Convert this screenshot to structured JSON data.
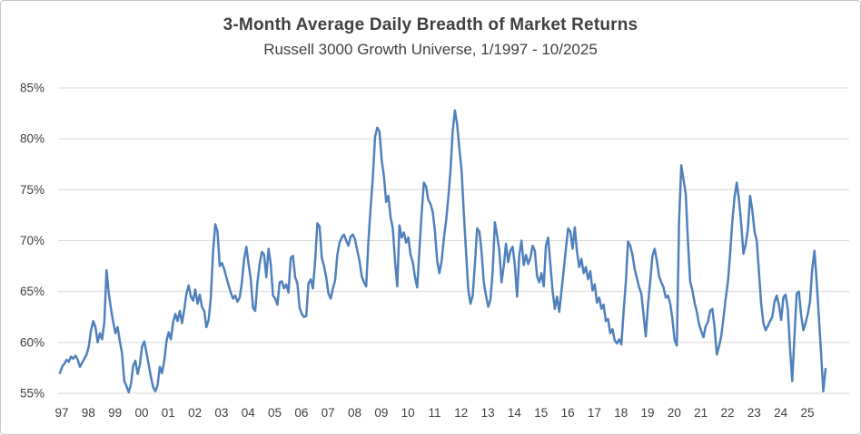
{
  "chart": {
    "title": "3-Month Average Daily Breadth of Market Returns",
    "subtitle": "Russell 3000 Growth Universe, 1/1997 - 10/2025"
  },
  "colors": {
    "line": "#4F81BD",
    "grid": "#D9D9D9",
    "text": "#3F3F3F",
    "title_text": "#414141",
    "border": "#C6C6C6",
    "background": "#FFFFFF"
  },
  "chart_data": {
    "type": "line",
    "title": "3-Month Average Daily Breadth of Market Returns",
    "subtitle": "Russell 3000 Growth Universe, 1/1997 - 10/2025",
    "xlabel": "",
    "ylabel": "",
    "grid": "horizontal",
    "legend": "none",
    "x_start_year": 1997,
    "x_points_per_year": 12,
    "x_end_label": "10/2025",
    "x_tick_labels": [
      "97",
      "98",
      "99",
      "00",
      "01",
      "02",
      "03",
      "04",
      "05",
      "06",
      "07",
      "08",
      "09",
      "10",
      "11",
      "12",
      "13",
      "14",
      "15",
      "16",
      "17",
      "18",
      "19",
      "20",
      "21",
      "22",
      "23",
      "24",
      "25"
    ],
    "y_ticks": [
      55,
      60,
      65,
      70,
      75,
      80,
      85
    ],
    "y_tick_suffix": "%",
    "ylim": [
      55,
      85
    ],
    "series": [
      {
        "name": "3-month average daily breadth of market returns",
        "values": [
          57.0,
          57.6,
          57.9,
          58.3,
          58.1,
          58.6,
          58.4,
          58.7,
          58.3,
          57.6,
          58.0,
          58.4,
          58.8,
          59.6,
          61.2,
          62.1,
          61.5,
          60.0,
          60.9,
          60.3,
          62.0,
          67.1,
          64.8,
          63.3,
          62.0,
          60.9,
          61.5,
          60.1,
          58.9,
          56.2,
          55.7,
          55.1,
          55.9,
          57.7,
          58.2,
          56.9,
          57.8,
          59.6,
          60.1,
          59.0,
          57.8,
          56.6,
          55.6,
          55.2,
          55.8,
          57.6,
          57.0,
          58.2,
          60.1,
          61.0,
          60.3,
          62.0,
          62.8,
          62.1,
          63.1,
          61.9,
          63.2,
          64.8,
          65.6,
          64.5,
          64.1,
          65.2,
          63.8,
          64.7,
          63.5,
          63.1,
          61.5,
          62.2,
          64.4,
          68.9,
          71.6,
          70.9,
          67.5,
          67.8,
          67.2,
          66.4,
          65.6,
          64.9,
          64.3,
          64.6,
          64.0,
          64.4,
          65.9,
          68.2,
          69.4,
          67.7,
          66.2,
          63.4,
          63.1,
          65.9,
          67.7,
          68.9,
          68.6,
          66.4,
          69.2,
          67.7,
          64.6,
          64.3,
          63.7,
          65.9,
          66.0,
          65.3,
          65.7,
          64.9,
          68.3,
          68.5,
          66.4,
          65.8,
          63.4,
          62.8,
          62.5,
          62.6,
          65.8,
          66.2,
          65.3,
          68.0,
          71.7,
          71.4,
          68.3,
          67.5,
          66.4,
          64.8,
          64.3,
          65.3,
          66.1,
          68.6,
          69.8,
          70.3,
          70.6,
          70.0,
          69.5,
          70.4,
          70.6,
          70.1,
          69.0,
          68.0,
          66.5,
          65.9,
          65.5,
          69.9,
          73.2,
          76.2,
          80.2,
          81.1,
          80.7,
          77.9,
          76.3,
          73.8,
          74.4,
          72.3,
          71.2,
          68.0,
          65.5,
          71.5,
          70.3,
          70.8,
          69.8,
          70.3,
          68.6,
          67.9,
          66.4,
          65.4,
          69.1,
          72.7,
          75.7,
          75.3,
          74.0,
          73.6,
          72.8,
          70.9,
          68.0,
          66.8,
          68.0,
          70.2,
          71.9,
          74.2,
          76.9,
          80.8,
          82.8,
          81.4,
          79.0,
          76.9,
          72.7,
          68.9,
          65.2,
          63.8,
          64.6,
          67.7,
          71.2,
          70.9,
          68.9,
          65.9,
          64.6,
          63.5,
          64.2,
          67.0,
          71.8,
          70.5,
          69.0,
          65.9,
          67.5,
          69.7,
          67.9,
          69.0,
          69.4,
          67.6,
          64.5,
          68.6,
          70.0,
          67.6,
          68.6,
          67.7,
          68.3,
          69.5,
          69.0,
          66.5,
          65.9,
          66.8,
          65.5,
          69.5,
          70.3,
          67.7,
          65.1,
          63.3,
          64.5,
          63.0,
          65.0,
          67.1,
          69.2,
          71.2,
          70.9,
          69.2,
          71.3,
          68.9,
          67.4,
          68.2,
          66.8,
          67.4,
          66.2,
          67.0,
          65.1,
          65.7,
          63.9,
          64.4,
          63.3,
          63.7,
          62.1,
          62.3,
          60.9,
          61.3,
          60.2,
          59.9,
          60.3,
          59.8,
          63.0,
          65.9,
          69.9,
          69.5,
          68.6,
          67.2,
          66.3,
          65.4,
          64.8,
          62.7,
          60.6,
          63.7,
          66.0,
          68.5,
          69.2,
          68.0,
          66.5,
          65.9,
          65.4,
          64.4,
          64.6,
          63.8,
          62.3,
          60.2,
          59.7,
          71.9,
          77.4,
          76.0,
          74.6,
          69.9,
          66.0,
          65.1,
          63.9,
          63.0,
          61.8,
          61.1,
          60.5,
          61.6,
          62.0,
          63.1,
          63.3,
          61.5,
          58.8,
          59.6,
          60.6,
          62.4,
          64.3,
          65.9,
          68.7,
          71.9,
          74.3,
          75.7,
          74.0,
          71.7,
          68.7,
          69.6,
          71.1,
          74.4,
          73.0,
          70.9,
          70.0,
          66.9,
          63.8,
          61.9,
          61.2,
          61.6,
          62.1,
          62.5,
          64.0,
          64.6,
          63.7,
          62.2,
          64.4,
          64.7,
          63.3,
          59.4,
          56.2,
          60.6,
          64.8,
          65.0,
          62.7,
          61.2,
          61.9,
          62.8,
          64.0,
          67.2,
          69.0,
          66.0,
          62.5,
          58.9,
          55.2,
          57.4
        ]
      }
    ]
  }
}
